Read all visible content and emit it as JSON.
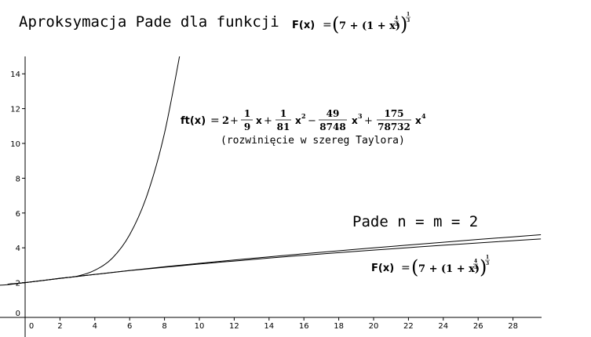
{
  "title": {
    "text": "Aproksymacja Pade dla funkcji",
    "formula": {
      "lhs": "F(x)",
      "eq": "=",
      "inner": "7 + (1 + x)",
      "inner_exp_num": "4",
      "inner_exp_den": "3",
      "outer_exp_num": "1",
      "outer_exp_den": "3"
    }
  },
  "annotations": {
    "taylor_formula": {
      "lhs": "ft(x)",
      "eq": "=",
      "const": "2",
      "t1_num": "1",
      "t1_den": "9",
      "t1_var": "x",
      "t2_num": "1",
      "t2_den": "81",
      "t2_var": "x",
      "t2_pow": "2",
      "t3_num": "49",
      "t3_den": "8748",
      "t3_var": "x",
      "t3_pow": "3",
      "t4_num": "175",
      "t4_den": "78732",
      "t4_var": "x",
      "t4_pow": "4"
    },
    "taylor_note": "(rozwinięcie w szereg Taylora)",
    "pade_label": "Pade n = m = 2",
    "function_formula": {
      "lhs": "F(x)",
      "eq": "=",
      "inner": "7 + (1 + x)",
      "inner_exp_num": "4",
      "inner_exp_den": "3",
      "outer_exp_num": "1",
      "outer_exp_den": "3"
    }
  },
  "chart_data": {
    "type": "line",
    "xlim": [
      -1.5,
      29.6
    ],
    "ylim": [
      -1.5,
      15
    ],
    "x_ticks": [
      0,
      2,
      4,
      6,
      8,
      10,
      12,
      14,
      16,
      18,
      20,
      22,
      24,
      26,
      28
    ],
    "y_ticks": [
      0,
      2,
      4,
      6,
      8,
      10,
      12,
      14
    ],
    "grid": false,
    "series": [
      {
        "formula": "ft(x) = 2 + x/9 + x^2/81 - 49x^3/8748 + 175x^4/78732",
        "color": "#000000",
        "x": [
          -1.5,
          -1,
          0,
          1,
          2,
          3,
          4,
          5,
          6,
          7,
          8,
          9
        ],
        "y": [
          1.85,
          1.88,
          2.0,
          2.12,
          2.25,
          2.37,
          2.71,
          3.4,
          4.75,
          7.03,
          10.59,
          15.75
        ]
      },
      {
        "formula": "F(x) = (7 + (1 + x)^(4/3))^(1/3)",
        "color": "#000000",
        "x": [
          -1,
          0,
          2,
          4,
          6,
          8,
          10,
          12,
          14,
          16,
          18,
          20,
          22,
          24,
          26,
          28,
          29.6
        ],
        "y": [
          1.91,
          2.0,
          2.24,
          2.47,
          2.69,
          2.88,
          3.07,
          3.24,
          3.41,
          3.57,
          3.72,
          3.87,
          4.01,
          4.15,
          4.28,
          4.41,
          4.51
        ]
      },
      {
        "formula": "Pade n = m = 2",
        "color": "#000000",
        "x": [
          -1,
          0,
          2,
          4,
          6,
          8,
          10,
          12,
          14,
          16,
          18,
          20,
          22,
          24,
          26,
          28,
          29.6
        ],
        "y": [
          1.91,
          2.0,
          2.24,
          2.47,
          2.7,
          2.91,
          3.11,
          3.3,
          3.48,
          3.66,
          3.83,
          4.0,
          4.16,
          4.32,
          4.48,
          4.63,
          4.75
        ]
      }
    ]
  }
}
